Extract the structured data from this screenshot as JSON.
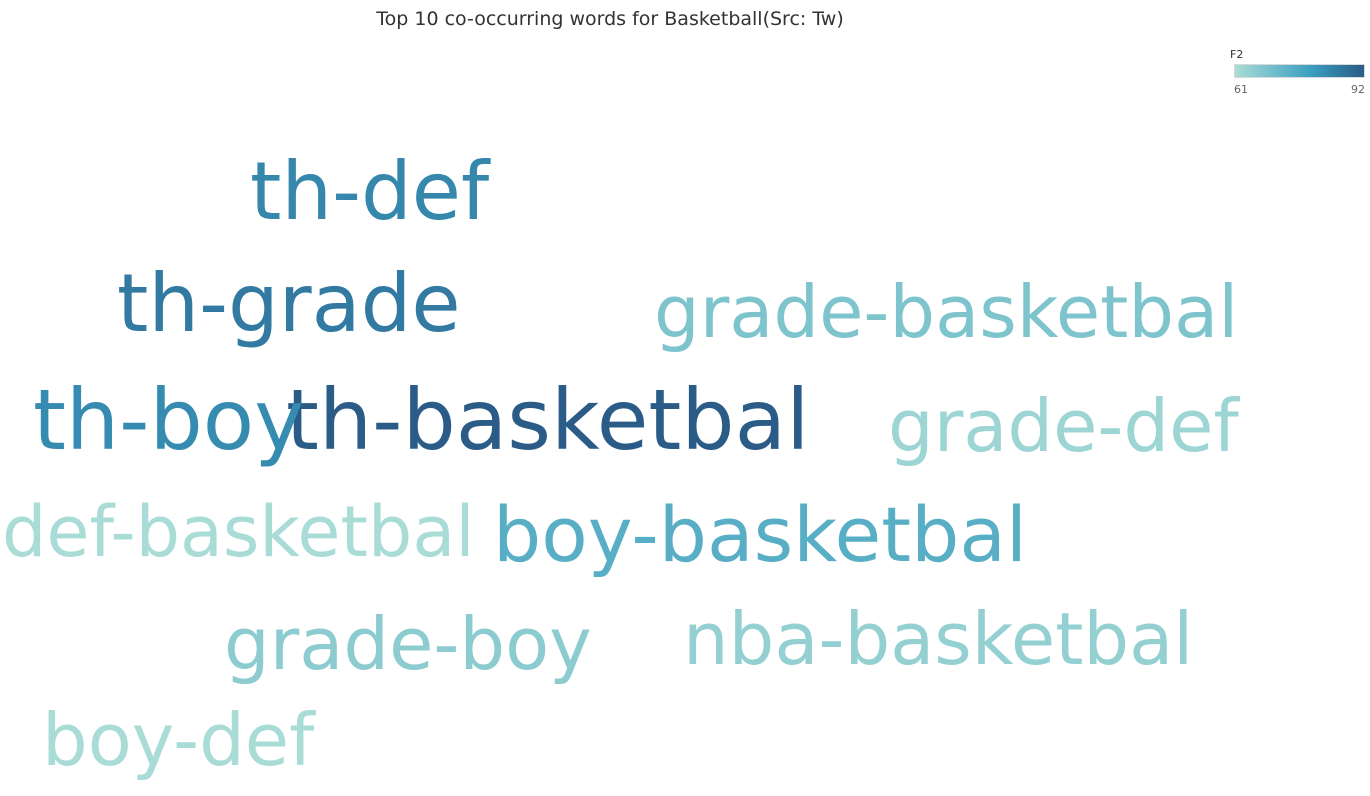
{
  "chart_data": {
    "type": "wordcloud",
    "title": "Top 10 co-occurring words for Basketball(Src: Tw)",
    "legend": {
      "title": "F2",
      "min": 61,
      "max": 92,
      "min_label": "61",
      "max_label": "92",
      "color_min": "#a9dcd6",
      "color_mid": "#3a9dbf",
      "color_max": "#2b5b87",
      "placement": "top-right"
    },
    "words": [
      {
        "text": "th-basketbal",
        "value": 92
      },
      {
        "text": "th-grade",
        "value": 85
      },
      {
        "text": "th-def",
        "value": 82
      },
      {
        "text": "th-boy",
        "value": 81
      },
      {
        "text": "boy-basketbal",
        "value": 72
      },
      {
        "text": "grade-basketbal",
        "value": 66
      },
      {
        "text": "grade-boy",
        "value": 64
      },
      {
        "text": "nba-basketbal",
        "value": 63
      },
      {
        "text": "grade-def",
        "value": 62
      },
      {
        "text": "def-basketbal",
        "value": 61
      },
      {
        "text": "boy-def",
        "value": 61
      }
    ]
  }
}
